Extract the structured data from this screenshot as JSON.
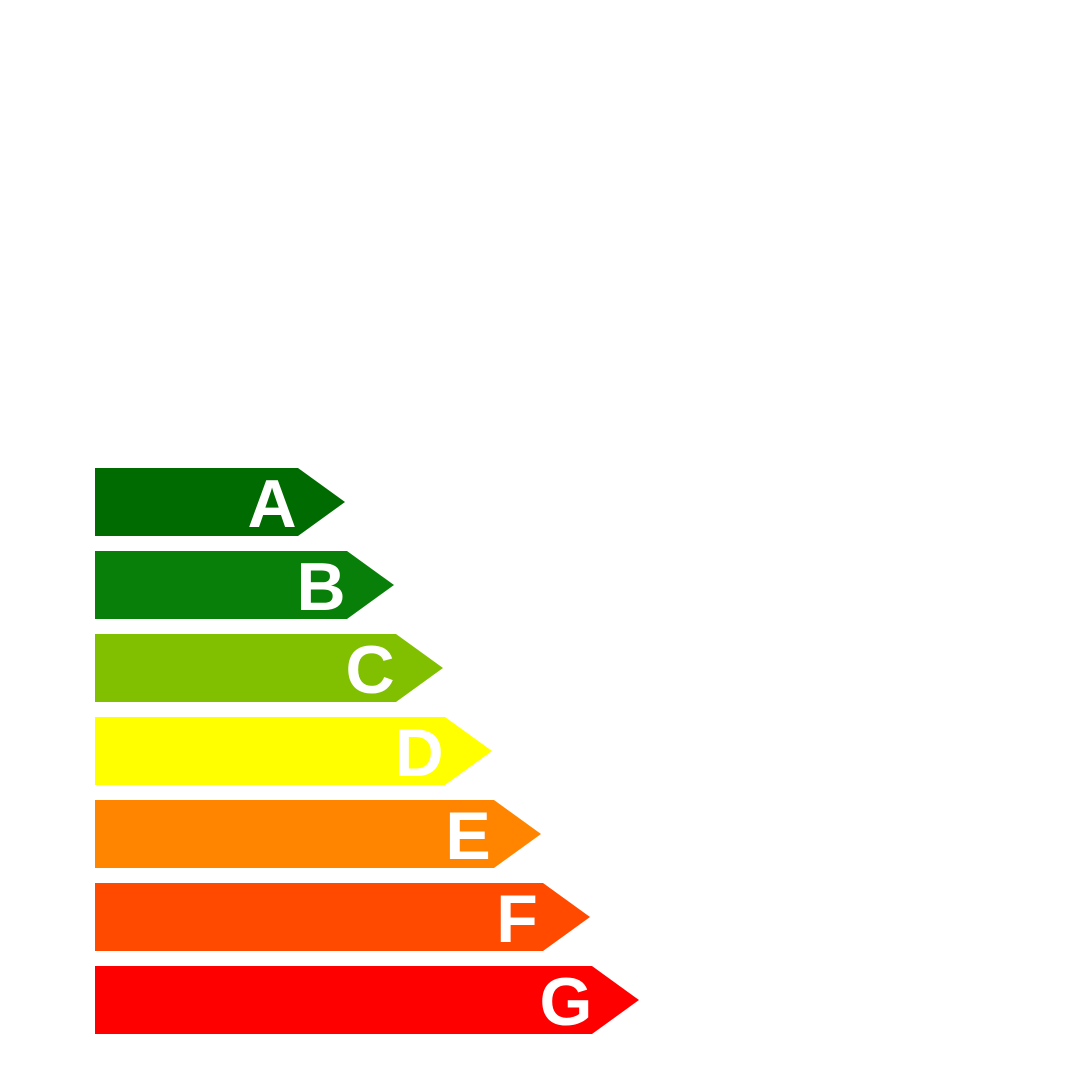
{
  "ratings": [
    {
      "label": "A",
      "color": "#006b00"
    },
    {
      "label": "B",
      "color": "#087f08"
    },
    {
      "label": "C",
      "color": "#80c000"
    },
    {
      "label": "D",
      "color": "#ffff00"
    },
    {
      "label": "E",
      "color": "#ff8500"
    },
    {
      "label": "F",
      "color": "#ff4a00"
    },
    {
      "label": "G",
      "color": "#ff0000"
    }
  ]
}
